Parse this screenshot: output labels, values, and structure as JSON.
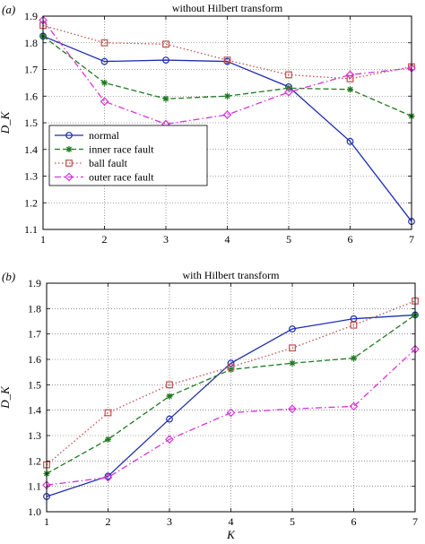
{
  "chart_data": [
    {
      "type": "line",
      "panel_label": "(a)",
      "title": "without Hilbert transform",
      "xlabel": "",
      "ylabel": "D_K",
      "xlim": [
        1,
        7
      ],
      "ylim": [
        1.1,
        1.9
      ],
      "x_ticks": [
        "1",
        "2",
        "3",
        "4",
        "5",
        "6",
        "7"
      ],
      "y_ticks": [
        "1.1",
        "1.2",
        "1.3",
        "1.4",
        "1.5",
        "1.6",
        "1.7",
        "1.8",
        "1.9"
      ],
      "grid": true,
      "legend_position": "lower-left",
      "x": [
        1,
        2,
        3,
        4,
        5,
        6,
        7
      ],
      "series": [
        {
          "name": "normal",
          "color": "#1f2fb0",
          "dash": "solid",
          "marker": "circle",
          "values": [
            1.825,
            1.73,
            1.735,
            1.73,
            1.635,
            1.43,
            1.13
          ]
        },
        {
          "name": "inner race fault",
          "color": "#1f7a1f",
          "dash": "dashed",
          "marker": "star",
          "values": [
            1.825,
            1.65,
            1.59,
            1.6,
            1.63,
            1.625,
            1.525
          ]
        },
        {
          "name": "ball fault",
          "color": "#c0504d",
          "dash": "dotted",
          "marker": "square",
          "values": [
            1.865,
            1.8,
            1.795,
            1.735,
            1.68,
            1.665,
            1.71
          ]
        },
        {
          "name": "outer race fault",
          "color": "#d633d6",
          "dash": "dashdot",
          "marker": "diamond",
          "values": [
            1.885,
            1.58,
            1.495,
            1.53,
            1.615,
            1.68,
            1.705
          ]
        }
      ]
    },
    {
      "type": "line",
      "panel_label": "(b)",
      "title": "with Hilbert transform",
      "xlabel": "K",
      "ylabel": "D_K",
      "xlim": [
        1,
        7
      ],
      "ylim": [
        1.0,
        1.9
      ],
      "x_ticks": [
        "1",
        "2",
        "3",
        "4",
        "5",
        "6",
        "7"
      ],
      "y_ticks": [
        "1.0",
        "1.1",
        "1.2",
        "1.3",
        "1.4",
        "1.5",
        "1.6",
        "1.7",
        "1.8",
        "1.9"
      ],
      "grid": true,
      "legend_position": "none",
      "x": [
        1,
        2,
        3,
        4,
        5,
        6,
        7
      ],
      "series": [
        {
          "name": "normal",
          "color": "#1f2fb0",
          "dash": "solid",
          "marker": "circle",
          "values": [
            1.06,
            1.14,
            1.365,
            1.585,
            1.72,
            1.76,
            1.775
          ]
        },
        {
          "name": "inner race fault",
          "color": "#1f7a1f",
          "dash": "dashed",
          "marker": "star",
          "values": [
            1.15,
            1.285,
            1.455,
            1.56,
            1.585,
            1.605,
            1.775
          ]
        },
        {
          "name": "ball fault",
          "color": "#c0504d",
          "dash": "dotted",
          "marker": "square",
          "values": [
            1.185,
            1.39,
            1.5,
            1.57,
            1.645,
            1.735,
            1.83
          ]
        },
        {
          "name": "outer race fault",
          "color": "#d633d6",
          "dash": "dashdot",
          "marker": "diamond",
          "values": [
            1.105,
            1.135,
            1.285,
            1.39,
            1.405,
            1.415,
            1.64
          ]
        }
      ]
    }
  ]
}
